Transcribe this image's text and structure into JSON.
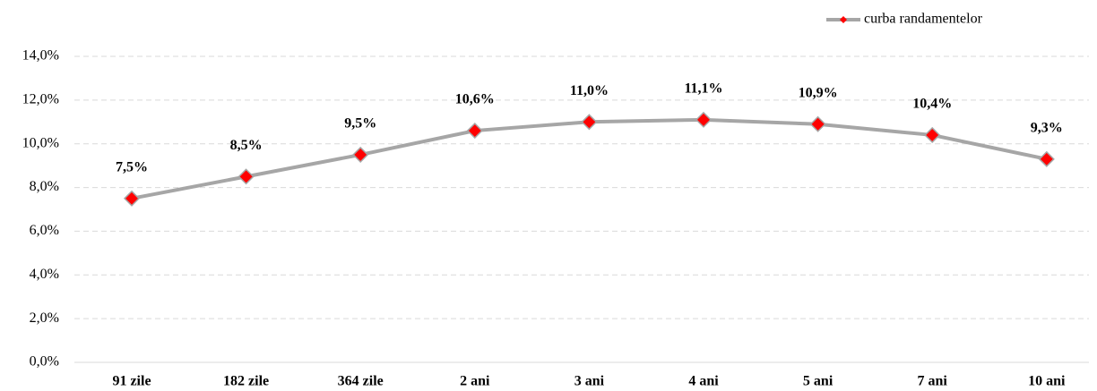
{
  "chart_data": {
    "type": "line",
    "categories": [
      "91 zile",
      "182 zile",
      "364 zile",
      "2 ani",
      "3 ani",
      "4 ani",
      "5 ani",
      "7 ani",
      "10 ani"
    ],
    "series": [
      {
        "name": "curba randamentelor",
        "color": "#a6a6a6",
        "marker_color": "#ff0000",
        "values": [
          7.5,
          8.5,
          9.5,
          10.6,
          11.0,
          11.1,
          10.9,
          10.4,
          9.3
        ],
        "value_labels": [
          "7,5%",
          "8,5%",
          "9,5%",
          "10,6%",
          "11,0%",
          "11,1%",
          "10,9%",
          "10,4%",
          "9,3%"
        ]
      }
    ],
    "ylim": [
      0,
      14
    ],
    "yticks": [
      {
        "value": 0,
        "label": "0,0%"
      },
      {
        "value": 2,
        "label": "2,0%"
      },
      {
        "value": 4,
        "label": "4,0%"
      },
      {
        "value": 6,
        "label": "6,0%"
      },
      {
        "value": 8,
        "label": "8,0%"
      },
      {
        "value": 10,
        "label": "10,0%"
      },
      {
        "value": 12,
        "label": "12,0%"
      },
      {
        "value": 14,
        "label": "14,0%"
      }
    ],
    "grid": true,
    "legend": "top-right"
  }
}
